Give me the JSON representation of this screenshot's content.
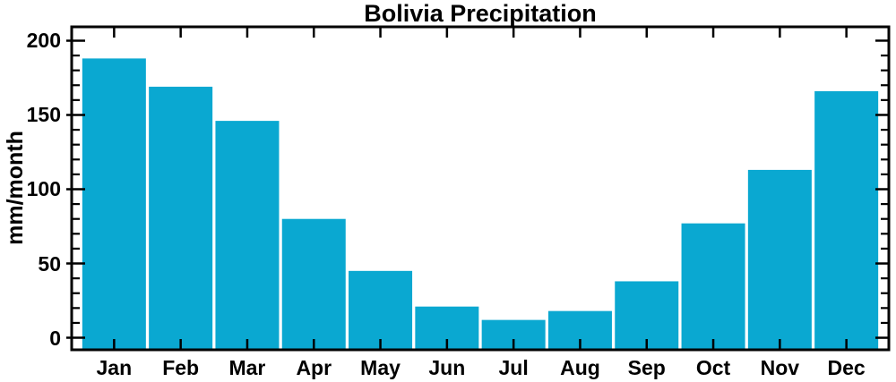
{
  "title": "Bolivia Precipitation",
  "chart_data": {
    "type": "bar",
    "title": "Bolivia Precipitation",
    "xlabel": "",
    "ylabel": "mm/month",
    "categories": [
      "Jan",
      "Feb",
      "Mar",
      "Apr",
      "May",
      "Jun",
      "Jul",
      "Aug",
      "Sep",
      "Oct",
      "Nov",
      "Dec"
    ],
    "values": [
      188,
      169,
      146,
      80,
      45,
      21,
      12,
      18,
      38,
      77,
      113,
      166
    ],
    "y_major_ticks": [
      0,
      50,
      100,
      150,
      200
    ],
    "y_minor_step": 10,
    "ylim": [
      -8.1,
      209.3
    ],
    "grid": false,
    "legend": "none",
    "bars_extend_to_frame_bottom": true,
    "ticks_direction": "in",
    "colors": {
      "bar": "#0aa8d1",
      "axis": "#000000",
      "text": "#000000",
      "background": "#ffffff"
    }
  }
}
